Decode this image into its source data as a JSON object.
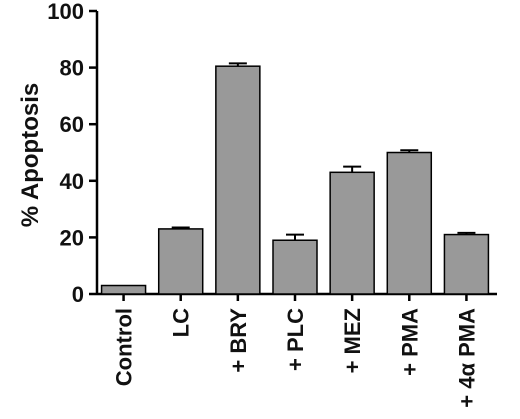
{
  "chart_data": {
    "type": "bar",
    "title": "",
    "xlabel": "",
    "ylabel": "% Apoptosis",
    "ylim": [
      0,
      100
    ],
    "yticks": [
      "0",
      "20",
      "40",
      "60",
      "80",
      "100"
    ],
    "categories": [
      "Control",
      "LC",
      "+ BRY",
      "+ PLC",
      "+ MEZ",
      "+ PMA",
      "+ 4α PMA"
    ],
    "values": [
      3,
      23,
      80.5,
      19,
      43,
      50,
      21
    ],
    "errors": [
      0,
      0.5,
      1,
      2,
      2,
      0.8,
      0.6
    ],
    "grid": false,
    "legend": "none",
    "bar_color": "#999999",
    "edge_color": "#000000"
  }
}
